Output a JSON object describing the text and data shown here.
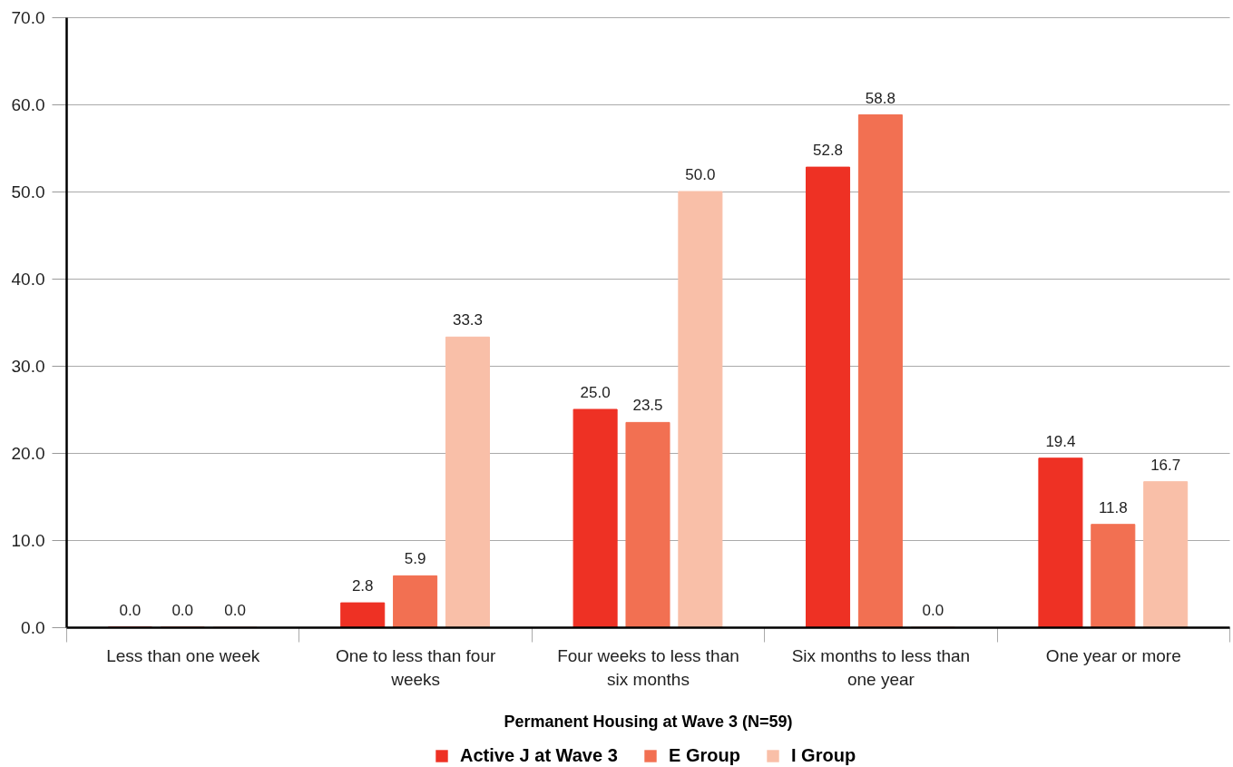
{
  "chart_data": {
    "type": "bar",
    "xlabel": "Permanent Housing at Wave 3 (N=59)",
    "categories": [
      "Less than one week",
      "One to less than four weeks",
      "Four weeks to less than six months",
      "Six months to less than one year",
      "One year or more"
    ],
    "series": [
      {
        "name": "Active J at Wave 3",
        "color": "#ee3124",
        "values": [
          0,
          2.8,
          25,
          52.8,
          19.4
        ],
        "value_labels": [
          "0.0",
          "2.8",
          "25.0",
          "52.8",
          "19.4"
        ]
      },
      {
        "name": "E Group",
        "color": "#f27052",
        "values": [
          0,
          5.9,
          23.5,
          58.8,
          11.8
        ],
        "value_labels": [
          "0.0",
          "5.9",
          "23.5",
          "58.8",
          "11.8"
        ]
      },
      {
        "name": "I Group",
        "color": "#f9bfa8",
        "values": [
          0,
          33.3,
          50,
          0,
          16.7
        ],
        "value_labels": [
          "0.0",
          "33.3",
          "50.0",
          "0.0",
          "16.7"
        ]
      }
    ],
    "ylim": [
      0,
      70
    ],
    "yticks": [
      {
        "value": 0,
        "label": "0.0"
      },
      {
        "value": 10,
        "label": "10.0"
      },
      {
        "value": 20,
        "label": "20.0"
      },
      {
        "value": 30,
        "label": "30.0"
      },
      {
        "value": 40,
        "label": "40.0"
      },
      {
        "value": 50,
        "label": "50.0"
      },
      {
        "value": 60,
        "label": "60.0"
      },
      {
        "value": 70,
        "label": "70.0"
      }
    ],
    "grid": "y",
    "legend": "bottom"
  }
}
